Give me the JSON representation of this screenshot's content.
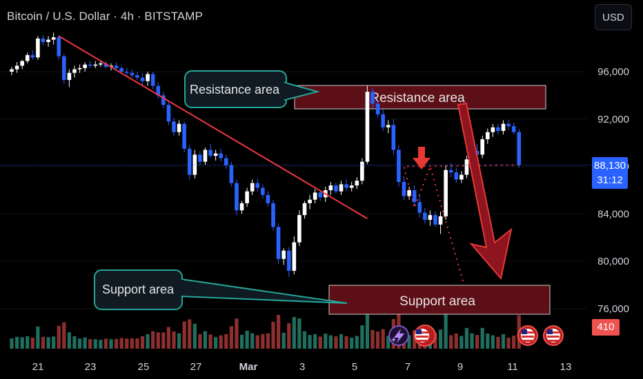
{
  "header": {
    "symbol_title": "Bitcoin / U.S. Dollar · 4h · BITSTAMP",
    "currency_button": "USD"
  },
  "price_axis": {
    "last_price": "88,130",
    "countdown": "31:12",
    "volume_badge": "410"
  },
  "annotations": {
    "resistance_callout": "Resistance area",
    "resistance_zone": "Resistance area",
    "support_callout": "Support area",
    "support_zone": "Support area"
  },
  "colors": {
    "background": "#000000",
    "bull": "#ffffff",
    "bear": "#2962ff",
    "vol_up": "#1f6e5e",
    "vol_down": "#8e2f2f",
    "trendline": "#f23645",
    "zone_fill": "#5c0f17",
    "callout_fill": "#0f1a22",
    "callout_border": "#26a69a",
    "last_price": "#2962ff"
  },
  "chart_data": {
    "type": "candlestick",
    "x_tick_labels": [
      "21",
      "23",
      "25",
      "27",
      "Mar",
      "3",
      "5",
      "7",
      "9",
      "11",
      "13"
    ],
    "y_tick_labels": [
      "96,000",
      "92,000",
      "88,000",
      "84,000",
      "80,000",
      "76,000"
    ],
    "y_ticks": [
      96000,
      92000,
      88000,
      84000,
      80000,
      76000
    ],
    "ylim": [
      74500,
      100500
    ],
    "last_price": 88130,
    "resistance_zone": [
      93000,
      94900
    ],
    "support_zone": [
      75800,
      78200
    ],
    "trendline": [
      {
        "x": 1.8,
        "y": 99000
      },
      {
        "x": 13.6,
        "y": 83600
      }
    ],
    "projection": [
      {
        "x": 15.0,
        "y": 88000
      },
      {
        "x": 15.4,
        "y": 84500
      },
      {
        "x": 16.0,
        "y": 88000
      },
      {
        "x": 17.3,
        "y": 78000
      }
    ],
    "candles": [
      [
        0.0,
        96000,
        96400,
        95700,
        96200
      ],
      [
        0.2,
        96200,
        96800,
        95900,
        96500
      ],
      [
        0.4,
        96500,
        97000,
        96200,
        96900
      ],
      [
        0.6,
        96900,
        97600,
        96700,
        97400
      ],
      [
        0.8,
        97400,
        97800,
        97000,
        97200
      ],
      [
        1.0,
        97200,
        99000,
        97000,
        98800
      ],
      [
        1.2,
        98800,
        99100,
        98200,
        98500
      ],
      [
        1.4,
        98500,
        99000,
        98100,
        98700
      ],
      [
        1.6,
        98700,
        99300,
        98300,
        98900
      ],
      [
        1.8,
        98900,
        99100,
        97000,
        97300
      ],
      [
        2.0,
        97300,
        97500,
        95000,
        95300
      ],
      [
        2.2,
        95300,
        96200,
        94700,
        95900
      ],
      [
        2.4,
        95900,
        96500,
        95500,
        96200
      ],
      [
        2.6,
        96200,
        96600,
        95900,
        96300
      ],
      [
        2.8,
        96300,
        96800,
        96000,
        96600
      ],
      [
        3.0,
        96600,
        96900,
        96300,
        96500
      ],
      [
        3.2,
        96500,
        96900,
        96300,
        96600
      ],
      [
        3.4,
        96600,
        96900,
        96400,
        96700
      ],
      [
        3.6,
        96700,
        96900,
        96300,
        96400
      ],
      [
        3.8,
        96400,
        96700,
        96100,
        96500
      ],
      [
        4.0,
        96500,
        96800,
        96200,
        96300
      ],
      [
        4.2,
        96300,
        96500,
        95800,
        96000
      ],
      [
        4.4,
        96000,
        96300,
        95600,
        95900
      ],
      [
        4.6,
        95900,
        96200,
        95500,
        95700
      ],
      [
        4.8,
        95700,
        96000,
        95300,
        95500
      ],
      [
        5.0,
        95500,
        95900,
        94900,
        95200
      ],
      [
        5.2,
        95200,
        96000,
        94800,
        95800
      ],
      [
        5.4,
        95800,
        96000,
        94500,
        94800
      ],
      [
        5.6,
        94800,
        95100,
        93700,
        94000
      ],
      [
        5.8,
        94000,
        94300,
        92900,
        93200
      ],
      [
        6.0,
        93200,
        93500,
        91500,
        91800
      ],
      [
        6.2,
        91800,
        92100,
        90600,
        90900
      ],
      [
        6.4,
        90900,
        91900,
        90600,
        91600
      ],
      [
        6.6,
        91600,
        91800,
        89200,
        89500
      ],
      [
        6.8,
        89500,
        89800,
        86900,
        87300
      ],
      [
        7.0,
        87300,
        89400,
        87000,
        89000
      ],
      [
        7.2,
        89000,
        89300,
        88100,
        88400
      ],
      [
        7.4,
        88400,
        89600,
        88100,
        89400
      ],
      [
        7.6,
        89400,
        89900,
        88700,
        88900
      ],
      [
        7.8,
        88900,
        89400,
        88500,
        89100
      ],
      [
        8.0,
        89100,
        89500,
        88400,
        88700
      ],
      [
        8.2,
        88700,
        89000,
        87800,
        88100
      ],
      [
        8.4,
        88100,
        88400,
        86300,
        86600
      ],
      [
        8.6,
        86600,
        86900,
        83900,
        84300
      ],
      [
        8.8,
        84300,
        85100,
        84000,
        84900
      ],
      [
        9.0,
        84900,
        86200,
        84600,
        85900
      ],
      [
        9.2,
        85900,
        86900,
        85600,
        86600
      ],
      [
        9.4,
        86600,
        87000,
        85900,
        86200
      ],
      [
        9.6,
        86200,
        86500,
        85300,
        85600
      ],
      [
        9.8,
        85600,
        85900,
        84600,
        84900
      ],
      [
        10.0,
        84900,
        85200,
        82600,
        82900
      ],
      [
        10.2,
        82900,
        83200,
        79800,
        80200
      ],
      [
        10.4,
        80200,
        81100,
        79700,
        80900
      ],
      [
        10.6,
        80900,
        81200,
        78700,
        79200
      ],
      [
        10.8,
        79200,
        82100,
        78900,
        81600
      ],
      [
        11.0,
        81600,
        84300,
        81300,
        83900
      ],
      [
        11.2,
        83900,
        85100,
        83600,
        84900
      ],
      [
        11.4,
        84900,
        85600,
        84400,
        85200
      ],
      [
        11.6,
        85200,
        86100,
        84900,
        85800
      ],
      [
        11.8,
        85800,
        86000,
        85100,
        85400
      ],
      [
        12.0,
        85400,
        86300,
        85000,
        86000
      ],
      [
        12.2,
        86000,
        86700,
        85600,
        86400
      ],
      [
        12.4,
        86400,
        86600,
        85700,
        85900
      ],
      [
        12.6,
        85900,
        86800,
        85600,
        86500
      ],
      [
        12.8,
        86500,
        86900,
        85900,
        86200
      ],
      [
        13.0,
        86200,
        86700,
        85900,
        86400
      ],
      [
        13.2,
        86400,
        87100,
        86100,
        86800
      ],
      [
        13.4,
        86800,
        88700,
        86500,
        88400
      ],
      [
        13.6,
        88400,
        94800,
        88200,
        94300
      ],
      [
        13.8,
        94300,
        94600,
        92900,
        93300
      ],
      [
        14.0,
        93300,
        93600,
        92100,
        92400
      ],
      [
        14.2,
        92400,
        92800,
        91000,
        91300
      ],
      [
        14.4,
        91300,
        91900,
        90800,
        91500
      ],
      [
        14.6,
        91500,
        92000,
        89000,
        89400
      ],
      [
        14.8,
        89400,
        89800,
        86300,
        86700
      ],
      [
        15.0,
        86700,
        87200,
        85200,
        85500
      ],
      [
        15.2,
        85500,
        86300,
        85200,
        86000
      ],
      [
        15.4,
        86000,
        86400,
        84700,
        85000
      ],
      [
        15.6,
        85000,
        85500,
        83700,
        84100
      ],
      [
        15.8,
        84100,
        84500,
        83200,
        83500
      ],
      [
        16.0,
        83500,
        84300,
        83000,
        83900
      ],
      [
        16.2,
        83900,
        84200,
        82900,
        83100
      ],
      [
        16.4,
        83100,
        84200,
        82300,
        83800
      ],
      [
        16.6,
        83800,
        88100,
        83500,
        87700
      ],
      [
        16.8,
        87700,
        88300,
        87100,
        87500
      ],
      [
        17.0,
        87500,
        87900,
        86600,
        86900
      ],
      [
        17.2,
        86900,
        87600,
        86600,
        87300
      ],
      [
        17.4,
        87300,
        88900,
        87000,
        88600
      ],
      [
        17.6,
        88600,
        89600,
        88300,
        89300
      ],
      [
        17.8,
        89300,
        89900,
        88700,
        89000
      ],
      [
        18.0,
        89000,
        90600,
        88700,
        90300
      ],
      [
        18.2,
        90300,
        91200,
        89900,
        90900
      ],
      [
        18.4,
        90900,
        91600,
        90500,
        91300
      ],
      [
        18.6,
        91300,
        91600,
        90700,
        91000
      ],
      [
        18.8,
        91000,
        91900,
        90700,
        91600
      ],
      [
        19.0,
        91600,
        91900,
        91100,
        91400
      ],
      [
        19.2,
        91400,
        91700,
        90700,
        90900
      ],
      [
        19.4,
        90900,
        91200,
        87900,
        88130
      ]
    ]
  }
}
